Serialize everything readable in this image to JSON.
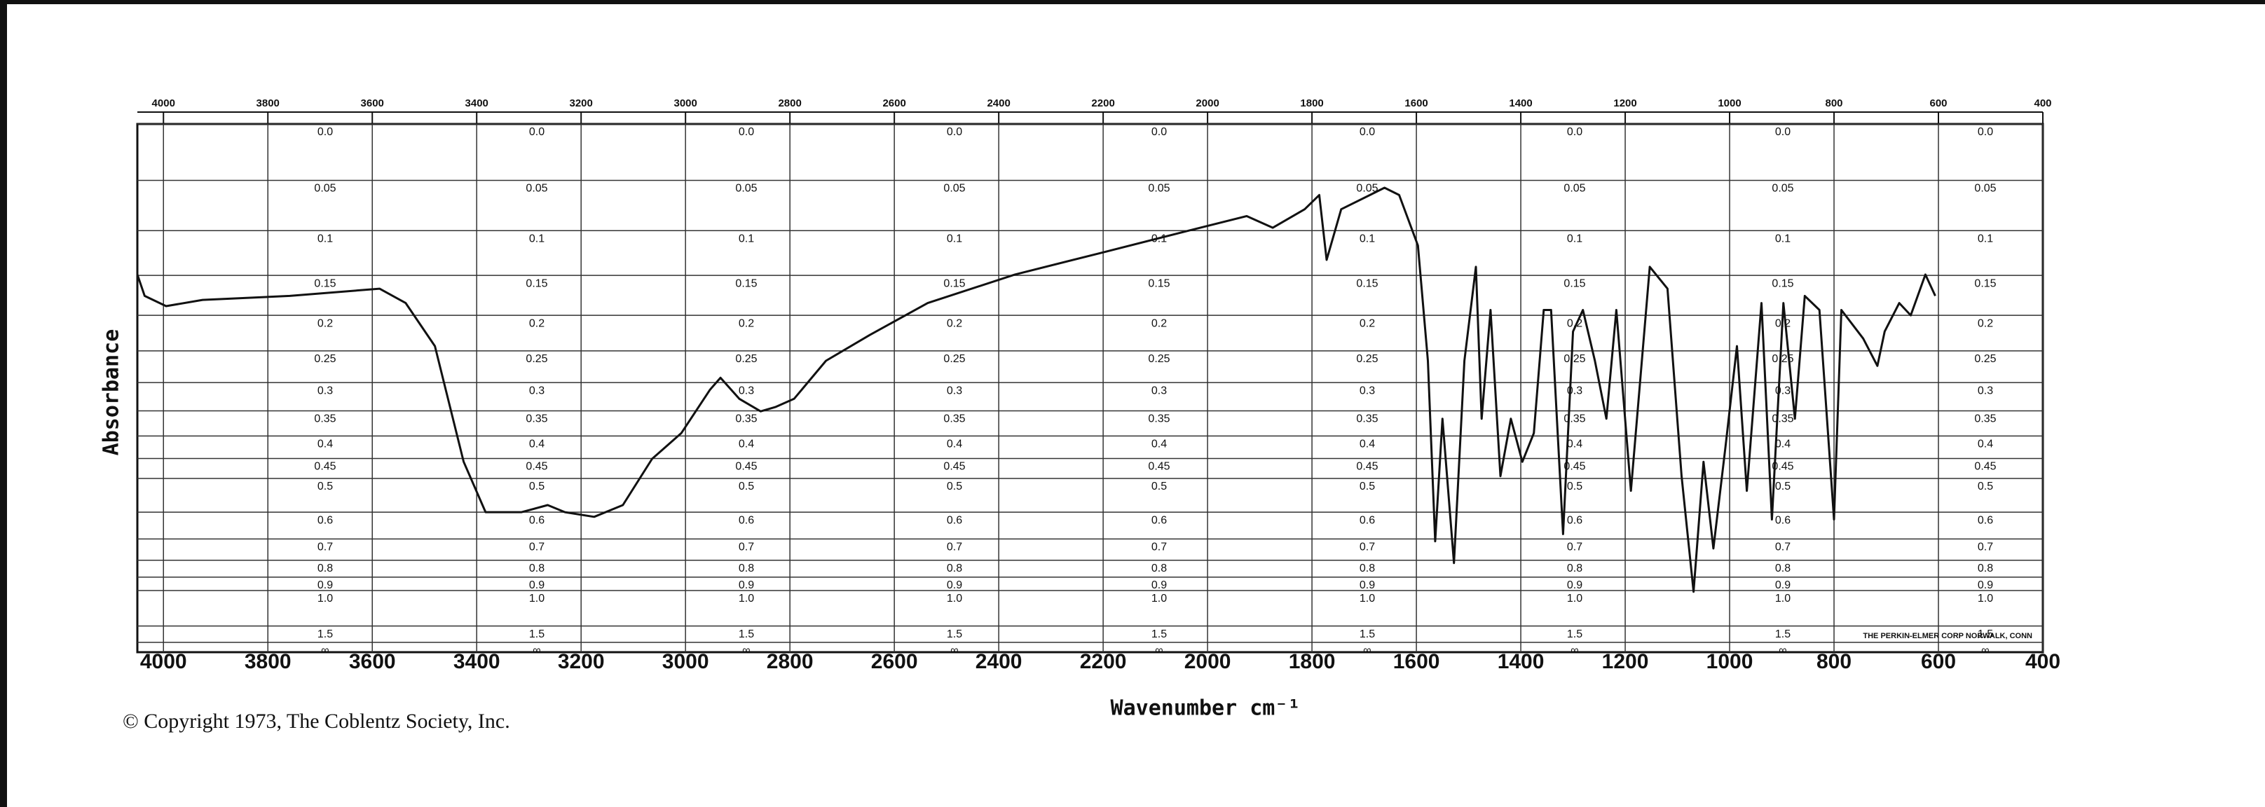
{
  "chart_data": {
    "type": "line",
    "x_label": "Wavenumber cm⁻¹",
    "y_label": "Absorbance",
    "annotations": [
      "© Copyright 1973, The Coblentz Society, Inc.",
      "THE PERKIN-ELMER CORP NORWALK, CONN"
    ],
    "y_scale": "transmittance",
    "grid": true,
    "color": "#111111",
    "xlim": [
      4050,
      400
    ],
    "xticks": [
      4000,
      3800,
      3600,
      3400,
      3200,
      3000,
      2800,
      2600,
      2400,
      2200,
      2000,
      1800,
      1600,
      1400,
      1200,
      1000,
      800,
      600,
      400
    ],
    "ylim": [
      0,
      null
    ],
    "yticks": [
      {
        "value": 0,
        "label": "0.0"
      },
      0.05,
      0.1,
      0.15,
      0.2,
      0.25,
      0.3,
      0.35,
      0.4,
      0.45,
      0.5,
      0.6,
      0.7,
      0.8,
      0.9,
      {
        "value": 1,
        "label": "1.0"
      },
      1.5,
      {
        "value": null,
        "label": "∞"
      }
    ],
    "x": [
      4050,
      4036,
      3995,
      3925,
      3758,
      3586,
      3536,
      3480,
      3425,
      3383,
      3314,
      3264,
      3231,
      3175,
      3120,
      3064,
      3008,
      2953,
      2933,
      2897,
      2856,
      2828,
      2792,
      2731,
      2647,
      2536,
      2369,
      2203,
      2036,
      1925,
      1875,
      1814,
      1786,
      1772,
      1744,
      1689,
      1661,
      1633,
      1597,
      1578,
      1564,
      1550,
      1528,
      1508,
      1486,
      1475,
      1458,
      1439,
      1419,
      1397,
      1375,
      1356,
      1342,
      1319,
      1300,
      1281,
      1258,
      1236,
      1217,
      1189,
      1153,
      1119,
      1092,
      1069,
      1050,
      1031,
      1008,
      986,
      967,
      939,
      919,
      897,
      875,
      856,
      828,
      800,
      786,
      744,
      717,
      703,
      675,
      653,
      625,
      606
    ],
    "values": [
      0.149,
      0.175,
      0.188,
      0.18,
      0.175,
      0.166,
      0.184,
      0.243,
      0.458,
      0.6,
      0.6,
      0.577,
      0.6,
      0.616,
      0.577,
      0.451,
      0.394,
      0.312,
      0.292,
      0.328,
      0.351,
      0.343,
      0.328,
      0.265,
      0.227,
      0.184,
      0.149,
      0.124,
      0.1,
      0.085,
      0.097,
      0.078,
      0.064,
      0.132,
      0.078,
      0.064,
      0.057,
      0.064,
      0.116,
      0.265,
      0.71,
      0.365,
      0.815,
      0.265,
      0.14,
      0.365,
      0.193,
      0.494,
      0.365,
      0.458,
      0.394,
      0.193,
      0.193,
      0.68,
      0.222,
      0.193,
      0.265,
      0.365,
      0.193,
      0.534,
      0.14,
      0.166,
      0.494,
      1.01,
      0.458,
      0.742,
      0.424,
      0.243,
      0.534,
      0.184,
      0.625,
      0.184,
      0.365,
      0.175,
      0.193,
      0.625,
      0.193,
      0.232,
      0.273,
      0.222,
      0.184,
      0.2,
      0.149,
      0.175
    ]
  }
}
